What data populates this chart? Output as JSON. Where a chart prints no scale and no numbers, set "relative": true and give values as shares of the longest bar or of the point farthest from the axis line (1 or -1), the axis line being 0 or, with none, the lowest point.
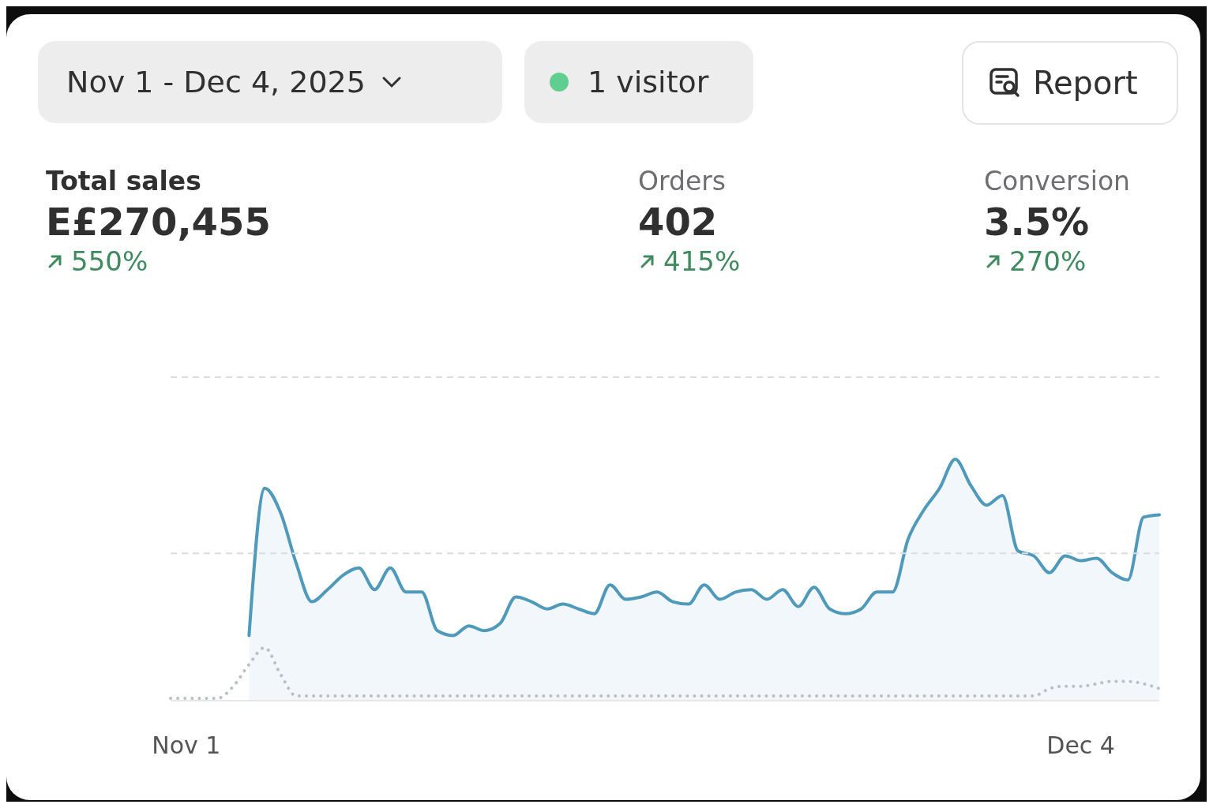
{
  "chart_data": {
    "type": "area",
    "relative": true,
    "marker": "none",
    "ref_lines": [
      {
        "axis": "y",
        "value": 0.61,
        "color": "#dcdcdc",
        "line_style": "dashed"
      },
      {
        "axis": "y",
        "value": 1.34,
        "color": "#dcdcdc",
        "line_style": "dashed"
      }
    ],
    "annotations": [
      "Nov 1 - Dec 4, 2025",
      "1 visitor",
      "Report",
      "Total sales",
      "E£270,455",
      "550%",
      "Orders",
      "402",
      "415%",
      "Conversion",
      "3.5%",
      "270%"
    ],
    "categories": [
      null,
      "Nov 1",
      null,
      null,
      null,
      null,
      null,
      null,
      null,
      null,
      null,
      null,
      null,
      null,
      null,
      null,
      null,
      null,
      null,
      null,
      null,
      null,
      null,
      null,
      null,
      null,
      null,
      null,
      null,
      null,
      null,
      null,
      null,
      null,
      null,
      null,
      null,
      null,
      null,
      null,
      null,
      null,
      null,
      null,
      null,
      null,
      null,
      null,
      null,
      null,
      null,
      null,
      null,
      null,
      null,
      null,
      null,
      null,
      "Dec 4",
      null,
      null,
      null,
      null,
      null
    ],
    "series": [
      {
        "color": "#4f9abb",
        "line_style": "solid",
        "values": [
          null,
          null,
          null,
          null,
          null,
          0.27,
          0.88,
          0.78,
          0.57,
          0.41,
          0.46,
          0.52,
          0.55,
          0.46,
          0.55,
          0.45,
          0.45,
          0.29,
          0.27,
          0.31,
          0.29,
          0.32,
          0.43,
          0.41,
          0.38,
          0.4,
          0.38,
          0.36,
          0.48,
          0.42,
          0.43,
          0.45,
          0.41,
          0.4,
          0.48,
          0.42,
          0.45,
          0.46,
          0.42,
          0.46,
          0.39,
          0.47,
          0.38,
          0.36,
          0.38,
          0.45,
          0.45,
          0.67,
          0.79,
          0.88,
          1,
          0.89,
          0.81,
          0.85,
          0.62,
          0.6,
          0.53,
          0.6,
          0.58,
          0.59,
          0.53,
          0.5,
          0.76,
          0.77
        ]
      },
      {
        "type": "line",
        "color": "#b9c0c6",
        "line_style": "dotted",
        "values": [
          0.01,
          0.01,
          0.01,
          0.01,
          0.06,
          0.15,
          0.22,
          0.11,
          0.02,
          0.02,
          0.02,
          0.02,
          0.02,
          0.02,
          0.02,
          0.02,
          0.02,
          0.02,
          0.02,
          0.02,
          0.02,
          0.02,
          0.02,
          0.02,
          0.02,
          0.02,
          0.02,
          0.02,
          0.02,
          0.02,
          0.02,
          0.02,
          0.02,
          0.02,
          0.02,
          0.02,
          0.02,
          0.02,
          0.02,
          0.02,
          0.02,
          0.02,
          0.02,
          0.02,
          0.02,
          0.02,
          0.02,
          0.02,
          0.02,
          0.02,
          0.02,
          0.02,
          0.02,
          0.02,
          0.02,
          0.02,
          0.05,
          0.06,
          0.06,
          0.07,
          0.08,
          0.08,
          0.07,
          0.05
        ]
      }
    ]
  }
}
